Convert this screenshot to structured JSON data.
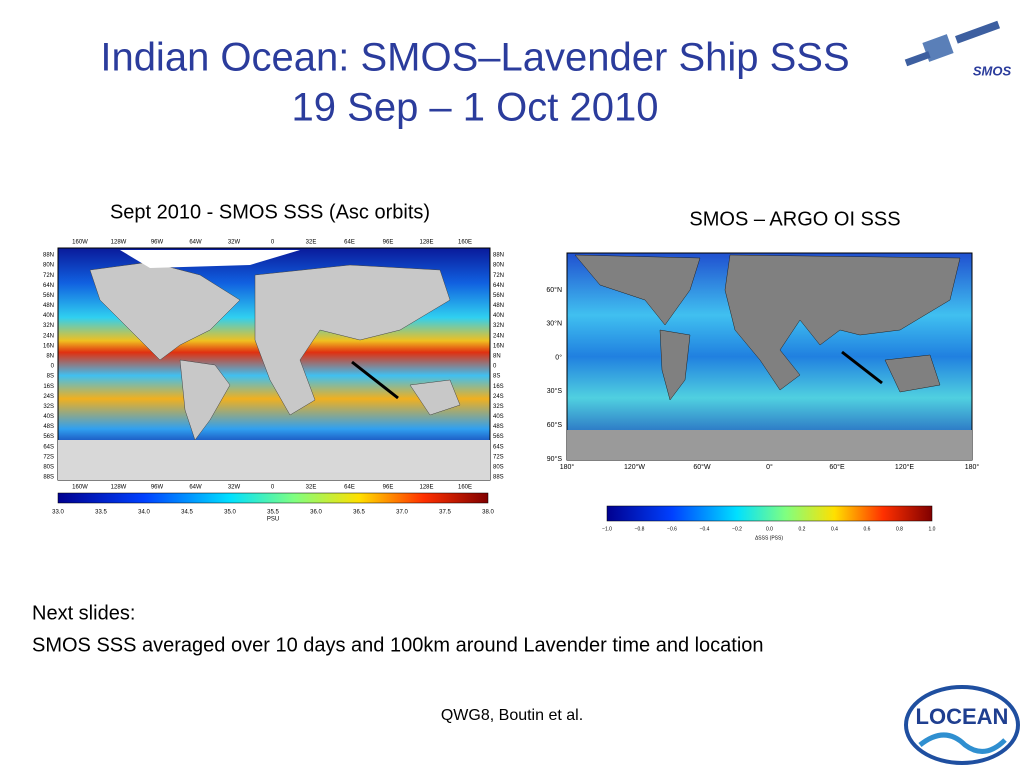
{
  "header": {
    "title_line1": "Indian Ocean: SMOS–Lavender Ship SSS",
    "title_line2": "19 Sep – 1 Oct 2010"
  },
  "left_panel": {
    "caption": "Sept 2010 -  SMOS SSS (Asc orbits)",
    "lon_labels": [
      "160W",
      "128W",
      "96W",
      "64W",
      "32W",
      "0",
      "32E",
      "64E",
      "96E",
      "128E",
      "160E"
    ],
    "lat_labels": [
      "88N",
      "80N",
      "72N",
      "64N",
      "56N",
      "48N",
      "40N",
      "32N",
      "24N",
      "16N",
      "8N",
      "0",
      "8S",
      "16S",
      "24S",
      "32S",
      "40S",
      "48S",
      "56S",
      "64S",
      "72S",
      "80S",
      "88S"
    ],
    "colorbar_labels": [
      "33.0",
      "33.5",
      "34.0",
      "34.5",
      "35.0",
      "35.5",
      "36.0",
      "36.5",
      "37.0",
      "37.5",
      "38.0"
    ],
    "colorbar_unit": "PSU"
  },
  "right_panel": {
    "caption": "SMOS – ARGO OI SSS",
    "lat_labels": [
      "60°N",
      "30°N",
      "0°",
      "30°S",
      "60°S",
      "90°S"
    ],
    "lon_labels": [
      "180°",
      "120°W",
      "60°W",
      "0°",
      "60°E",
      "120°E",
      "180°"
    ],
    "colorbar_labels": [
      "−1.0",
      "−0.8",
      "−0.6",
      "−0.4",
      "−0.2",
      "0.0",
      "0.2",
      "0.4",
      "0.6",
      "0.8",
      "1.0"
    ],
    "colorbar_unit": "ΔSSS (PSS)"
  },
  "notes": [
    "Next slides:",
    "SMOS SSS averaged over 10 days and 100km around Lavender time and location"
  ],
  "footer": "QWG8, Boutin et al.",
  "logos": {
    "smos": "SMOS",
    "locean": "LOCEAN"
  }
}
